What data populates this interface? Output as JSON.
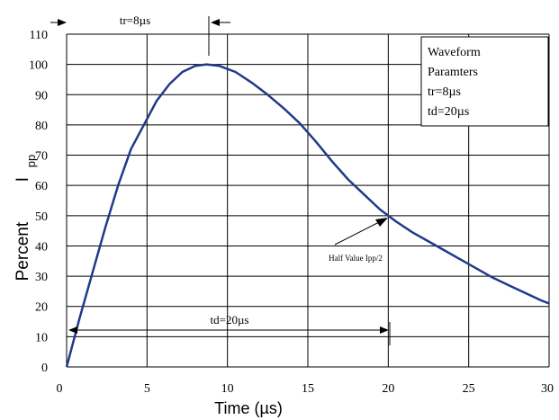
{
  "chart_data": {
    "type": "line",
    "xlabel": "Time (µs)",
    "ylabel": "Percent",
    "ylabel_symbol": "I",
    "ylabel_subscript": "pp",
    "xlim": [
      0,
      30
    ],
    "ylim": [
      0,
      110
    ],
    "x_ticks": [
      "0",
      "5",
      "10",
      "15",
      "20",
      "25",
      "30"
    ],
    "y_ticks": [
      "0",
      "10",
      "20",
      "30",
      "40",
      "50",
      "60",
      "70",
      "80",
      "90",
      "100",
      "110"
    ],
    "grid": true,
    "series": [
      {
        "color": "#1f3a8a",
        "x": [
          0,
          0.8,
          1.6,
          2.4,
          3.2,
          4.0,
          4.8,
          5.6,
          6.4,
          7.2,
          8.0,
          8.7,
          9.5,
          10.5,
          11.5,
          12.5,
          13.5,
          14.5,
          15.5,
          16.5,
          17.5,
          18.5,
          19.5,
          20.5,
          21.5,
          22.5,
          23.5,
          24.5,
          25.5,
          26.5,
          27.5,
          28.5,
          29.5,
          30
        ],
        "y": [
          0,
          16,
          31,
          46,
          60,
          72,
          80,
          88,
          93.5,
          97.5,
          99.5,
          100,
          99.5,
          97.5,
          94,
          90,
          85.5,
          80.5,
          74.5,
          68,
          62,
          57,
          52,
          48,
          44.5,
          41.5,
          38.5,
          35.5,
          32.5,
          29.5,
          27,
          24.5,
          22,
          21
        ]
      }
    ],
    "annotations": {
      "tr_label": "tr=8µs",
      "td_label": "td=20µs",
      "half_value_label": "Half Value Ipp/2"
    },
    "legend_box": {
      "lines": [
        "Waveform",
        "Paramters",
        "tr=8µs",
        "td=20µs"
      ]
    }
  }
}
